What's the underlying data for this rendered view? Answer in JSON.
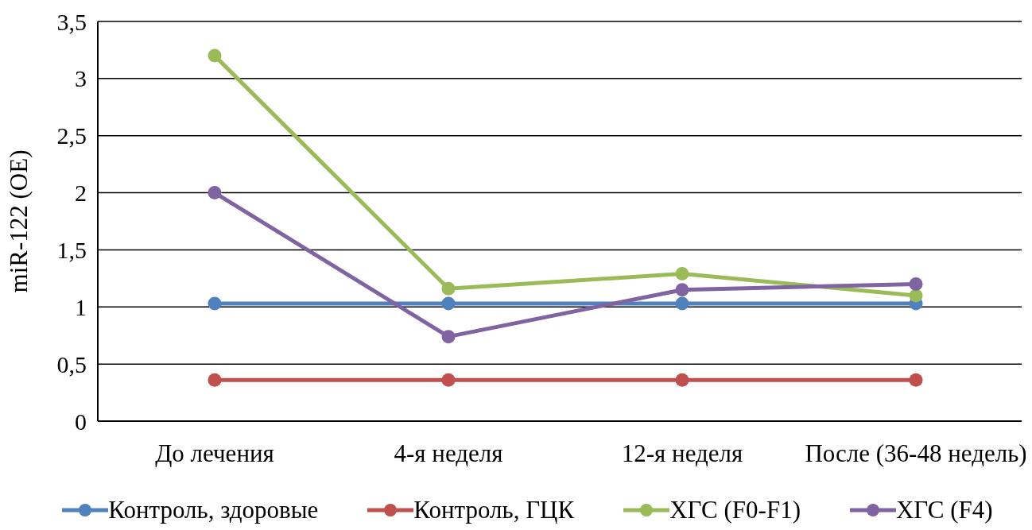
{
  "chart_data": {
    "type": "line",
    "ylabel": "miR-122 (OE)",
    "categories": [
      "До лечения",
      "4-я неделя",
      "12-я неделя",
      "После (36-48 недель)"
    ],
    "series": [
      {
        "name": "Контроль, здоровые",
        "color": "#4f81bd",
        "values": [
          1.03,
          1.03,
          1.03,
          1.03
        ]
      },
      {
        "name": "Контроль, ГЦК",
        "color": "#c0504d",
        "values": [
          0.36,
          0.36,
          0.36,
          0.36
        ]
      },
      {
        "name": "ХГС (F0-F1)",
        "color": "#9bbb59",
        "values": [
          3.2,
          1.16,
          1.29,
          1.1
        ]
      },
      {
        "name": "ХГС (F4)",
        "color": "#8064a2",
        "values": [
          2.0,
          0.74,
          1.15,
          1.2
        ]
      }
    ],
    "ylim": [
      0,
      3.5
    ],
    "yticks": [
      0,
      {
        "value": 0.5,
        "label": "0,5"
      },
      1,
      {
        "value": 1.5,
        "label": "1,5"
      },
      2,
      {
        "value": 2.5,
        "label": "2,5"
      },
      3,
      {
        "value": 3.5,
        "label": "3,5"
      }
    ],
    "grid": "y",
    "legend": "bottom",
    "marker": "circle",
    "line_style": "solid"
  }
}
